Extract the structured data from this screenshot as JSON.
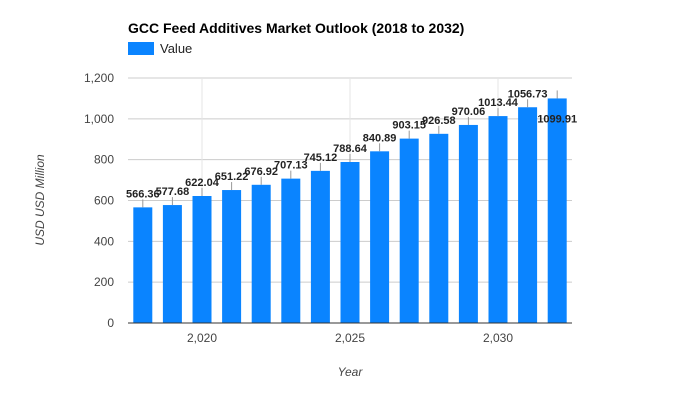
{
  "chart_data": {
    "type": "bar",
    "title": "GCC Feed Additives Market Outlook (2018 to 2032)",
    "xlabel": "Year",
    "ylabel": "USD USD Million",
    "ylim": [
      0,
      1200
    ],
    "y_ticks": [
      0,
      200,
      400,
      600,
      800,
      1000,
      1200
    ],
    "y_tick_labels": [
      "0",
      "200",
      "400",
      "600",
      "800",
      "1,000",
      "1,200"
    ],
    "x_range": [
      2017.5,
      2032.5
    ],
    "x_ticks": [
      2020,
      2025,
      2030
    ],
    "x_tick_labels": [
      "2,020",
      "2,025",
      "2,030"
    ],
    "grid": true,
    "legend_position": "top-left",
    "series": [
      {
        "name": "Value",
        "color": "#0a84ff",
        "x": [
          2018,
          2019,
          2020,
          2021,
          2022,
          2023,
          2024,
          2025,
          2026,
          2027,
          2028,
          2029,
          2030,
          2031,
          2032
        ],
        "values": [
          566.36,
          577.68,
          622.04,
          651.22,
          676.92,
          707.13,
          745.12,
          788.64,
          840.89,
          903.15,
          926.58,
          970.06,
          1013.44,
          1056.73,
          1099.91
        ],
        "labels": [
          "566.36",
          "577.68",
          "622.04",
          "651.22",
          "676.92",
          "707.13",
          "745.12",
          "788.64",
          "840.89",
          "903.15",
          "926.58",
          "970.06",
          "1013.44",
          "1056.73",
          "1099.91"
        ]
      }
    ]
  }
}
